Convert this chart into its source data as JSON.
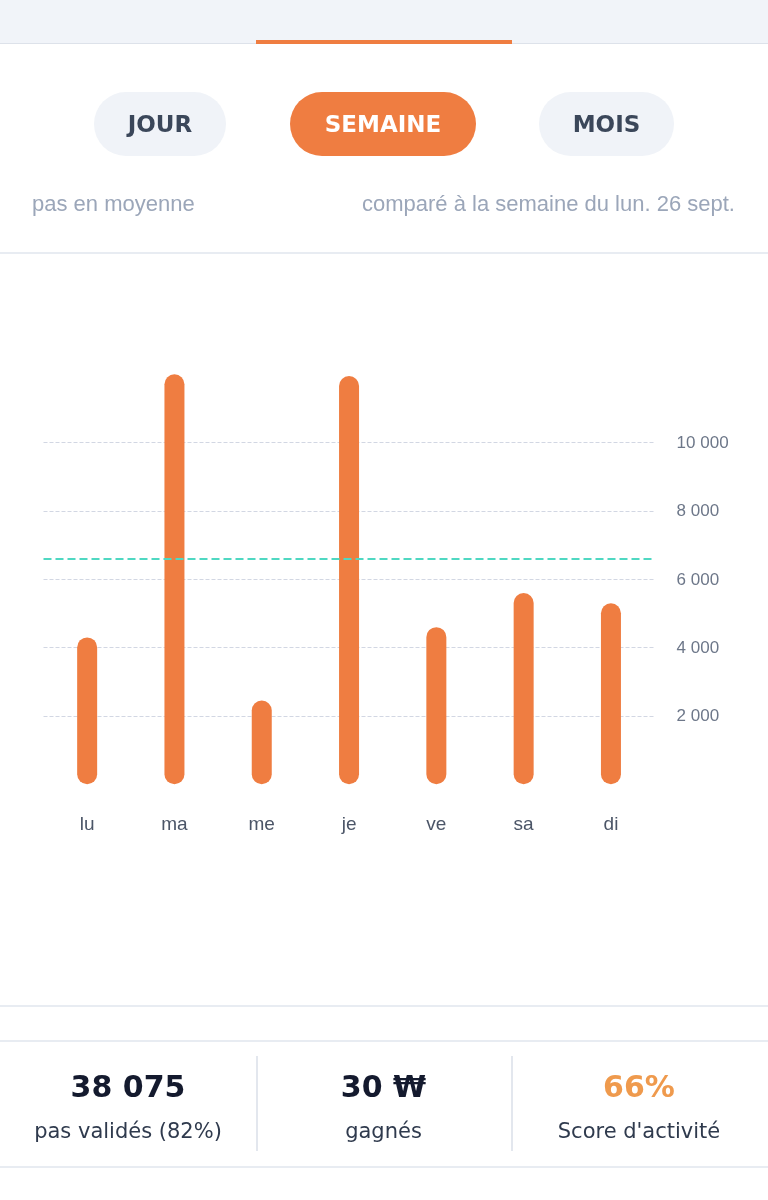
{
  "chart_data": [
    {
      "type": "other",
      "annotations": [
        "JOUR",
        "SEMAINE",
        "MOIS",
        "pas en moyenne",
        "comparé à la semaine du lun. 26 sept."
      ]
    },
    {
      "type": "bar",
      "categories": [
        "lu",
        "ma",
        "me",
        "je",
        "ve",
        "sa",
        "di"
      ],
      "values": [
        4300,
        12000,
        2450,
        11950,
        4600,
        5600,
        5300
      ],
      "color": "#ef7d41",
      "ylim": [
        0,
        12000
      ],
      "yticks": [
        {
          "value": 2000,
          "label": "2 000"
        },
        {
          "value": 4000,
          "label": "4 000"
        },
        {
          "value": 6000,
          "label": "6 000"
        },
        {
          "value": 8000,
          "label": "8 000"
        },
        {
          "value": 10000,
          "label": "10 000"
        }
      ],
      "grid": "y",
      "ref_lines": [
        {
          "axis": "y",
          "value": 6600,
          "color": "#4fd8c2",
          "line_style": "dashed"
        }
      ]
    },
    {
      "type": "other",
      "annotations": [
        "38 075",
        "pas validés (82%)",
        "30 ₩",
        "gagnés",
        "66%",
        "Score d'activité"
      ]
    }
  ]
}
